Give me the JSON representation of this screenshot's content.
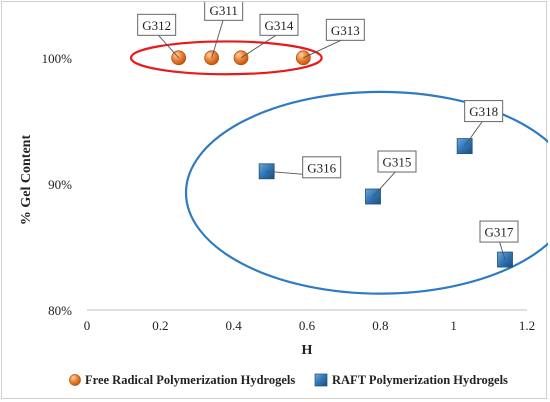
{
  "chart_data": {
    "type": "scatter",
    "title": "",
    "xlabel": "H",
    "ylabel": "% Gel Content",
    "xlim": [
      0,
      1.2
    ],
    "ylim": [
      80,
      103
    ],
    "x_ticks": [
      0,
      0.2,
      0.4,
      0.6,
      0.8,
      1,
      1.2
    ],
    "x_tick_labels": [
      "0",
      "0.2",
      "0.4",
      "0.6",
      "0.8",
      "1",
      "1.2"
    ],
    "y_ticks": [
      80,
      90,
      100
    ],
    "y_tick_labels": [
      "80%",
      "90%",
      "100%"
    ],
    "grid": false,
    "legend_position": "bottom",
    "series": [
      {
        "name": "Free Radical Polymerization Hydrogels",
        "marker": "circle",
        "color": "#ed7d31",
        "points": [
          {
            "label": "G312",
            "x": 0.25,
            "y": 100
          },
          {
            "label": "G311",
            "x": 0.34,
            "y": 100
          },
          {
            "label": "G314",
            "x": 0.42,
            "y": 100
          },
          {
            "label": "G313",
            "x": 0.59,
            "y": 100
          }
        ]
      },
      {
        "name": "RAFT Polymerization Hydrogels",
        "marker": "square",
        "color": "#2e75b6",
        "points": [
          {
            "label": "G316",
            "x": 0.49,
            "y": 91
          },
          {
            "label": "G315",
            "x": 0.78,
            "y": 89
          },
          {
            "label": "G318",
            "x": 1.03,
            "y": 93
          },
          {
            "label": "G317",
            "x": 1.14,
            "y": 84
          }
        ]
      }
    ],
    "annotations": [
      {
        "type": "ellipse",
        "color": "#e8191a",
        "x_center": 0.38,
        "y_center": 100,
        "x_radius": 0.26,
        "y_radius": 1.3
      },
      {
        "type": "ellipse",
        "color": "#2e7bc4",
        "x_center": 0.8,
        "y_center": 89.3,
        "x_radius": 0.53,
        "y_radius": 8
      }
    ]
  }
}
